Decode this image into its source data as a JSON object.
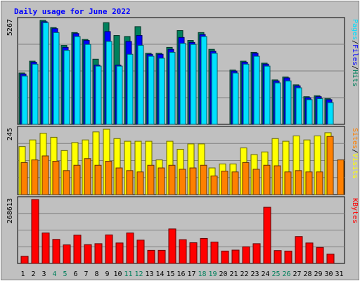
{
  "header": {
    "title": "Daily usage for June 2022"
  },
  "colors": {
    "background": "#c0c0c0",
    "panel": "#c0c0c0",
    "title": "#0000ff",
    "hits": "#00805c",
    "files": "#0000ff",
    "pages": "#00e0ff",
    "visits": "#ffff00",
    "sites": "#ff8000",
    "kbytes": "#ff0000",
    "weekend_label": "#00805c",
    "weekday_label": "#000000"
  },
  "chart_data": [
    {
      "type": "bar",
      "name": "hits-files-pages",
      "ymax_label": "5267",
      "ylim": [
        0,
        5267
      ],
      "right_label": [
        "Pages",
        "Files",
        "Hits"
      ],
      "categories": [
        "1",
        "2",
        "3",
        "4",
        "5",
        "6",
        "7",
        "8",
        "9",
        "10",
        "11",
        "12",
        "13",
        "14",
        "15",
        "16",
        "17",
        "18",
        "19",
        "20",
        "21",
        "22",
        "23",
        "24",
        "25",
        "26",
        "27",
        "28",
        "29",
        "30",
        "31"
      ],
      "series": [
        {
          "name": "Hits",
          "values": [
            2600,
            3200,
            5267,
            4900,
            4000,
            4650,
            4300,
            3300,
            5150,
            4500,
            4450,
            4950,
            3600,
            3600,
            3900,
            4750,
            4250,
            4650,
            3800,
            0,
            2750,
            3200,
            3650,
            3100,
            2250,
            2400,
            2000,
            1400,
            1450,
            1300,
            0
          ]
        },
        {
          "name": "Files",
          "values": [
            2550,
            3150,
            5200,
            4850,
            3900,
            4600,
            4250,
            3000,
            4700,
            3000,
            4200,
            4500,
            3550,
            3550,
            3800,
            4400,
            4150,
            4550,
            3700,
            0,
            2700,
            3150,
            3600,
            3050,
            2200,
            2350,
            1950,
            1350,
            1400,
            1250,
            0
          ]
        },
        {
          "name": "Pages",
          "values": [
            2450,
            3050,
            5150,
            4650,
            3750,
            4450,
            4050,
            2950,
            4200,
            2950,
            3550,
            4000,
            3450,
            3350,
            3650,
            4100,
            4050,
            4450,
            3600,
            0,
            2600,
            3050,
            3450,
            2950,
            2100,
            2200,
            1850,
            1250,
            1300,
            1100,
            0
          ]
        }
      ]
    },
    {
      "type": "bar",
      "name": "visits-sites",
      "ymax_label": "245",
      "ylim": [
        0,
        245
      ],
      "right_label": [
        "Sites",
        "Visits"
      ],
      "categories": [
        "1",
        "2",
        "3",
        "4",
        "5",
        "6",
        "7",
        "8",
        "9",
        "10",
        "11",
        "12",
        "13",
        "14",
        "15",
        "16",
        "17",
        "18",
        "19",
        "20",
        "21",
        "22",
        "23",
        "24",
        "25",
        "26",
        "27",
        "28",
        "29",
        "30",
        "31"
      ],
      "series": [
        {
          "name": "Visits",
          "values": [
            180,
            205,
            230,
            215,
            165,
            195,
            205,
            235,
            245,
            210,
            200,
            200,
            200,
            130,
            200,
            170,
            190,
            190,
            100,
            115,
            115,
            175,
            150,
            160,
            210,
            200,
            220,
            205,
            220,
            232,
            0
          ]
        },
        {
          "name": "Sites",
          "values": [
            120,
            130,
            145,
            125,
            90,
            110,
            135,
            110,
            125,
            100,
            90,
            85,
            110,
            100,
            110,
            95,
            100,
            110,
            70,
            88,
            85,
            120,
            95,
            110,
            108,
            85,
            90,
            85,
            85,
            218,
            130
          ]
        }
      ]
    },
    {
      "type": "bar",
      "name": "kbytes",
      "ymax_label": "268613",
      "ylim": [
        0,
        268613
      ],
      "right_label": [
        "KBytes"
      ],
      "categories": [
        "1",
        "2",
        "3",
        "4",
        "5",
        "6",
        "7",
        "8",
        "9",
        "10",
        "11",
        "12",
        "13",
        "14",
        "15",
        "16",
        "17",
        "18",
        "19",
        "20",
        "21",
        "22",
        "23",
        "24",
        "25",
        "26",
        "27",
        "28",
        "29",
        "30",
        "31"
      ],
      "series": [
        {
          "name": "KBytes",
          "values": [
            30000,
            268613,
            128000,
            101000,
            78000,
            119000,
            79000,
            83000,
            120000,
            86000,
            128000,
            98000,
            55000,
            55000,
            145000,
            100000,
            87000,
            105000,
            90000,
            52000,
            56000,
            70000,
            83000,
            236000,
            54000,
            52000,
            113000,
            86000,
            67000,
            39000,
            0
          ]
        }
      ]
    }
  ],
  "x_axis": {
    "labels": [
      "1",
      "2",
      "3",
      "4",
      "5",
      "6",
      "7",
      "8",
      "9",
      "10",
      "11",
      "12",
      "13",
      "14",
      "15",
      "16",
      "17",
      "18",
      "19",
      "20",
      "21",
      "22",
      "23",
      "24",
      "25",
      "26",
      "27",
      "28",
      "29",
      "30",
      "31"
    ],
    "weekend": [
      false,
      false,
      false,
      true,
      true,
      false,
      false,
      false,
      false,
      false,
      true,
      true,
      false,
      false,
      false,
      false,
      false,
      true,
      true,
      false,
      false,
      false,
      false,
      false,
      true,
      true,
      false,
      false,
      false,
      false,
      false
    ]
  }
}
